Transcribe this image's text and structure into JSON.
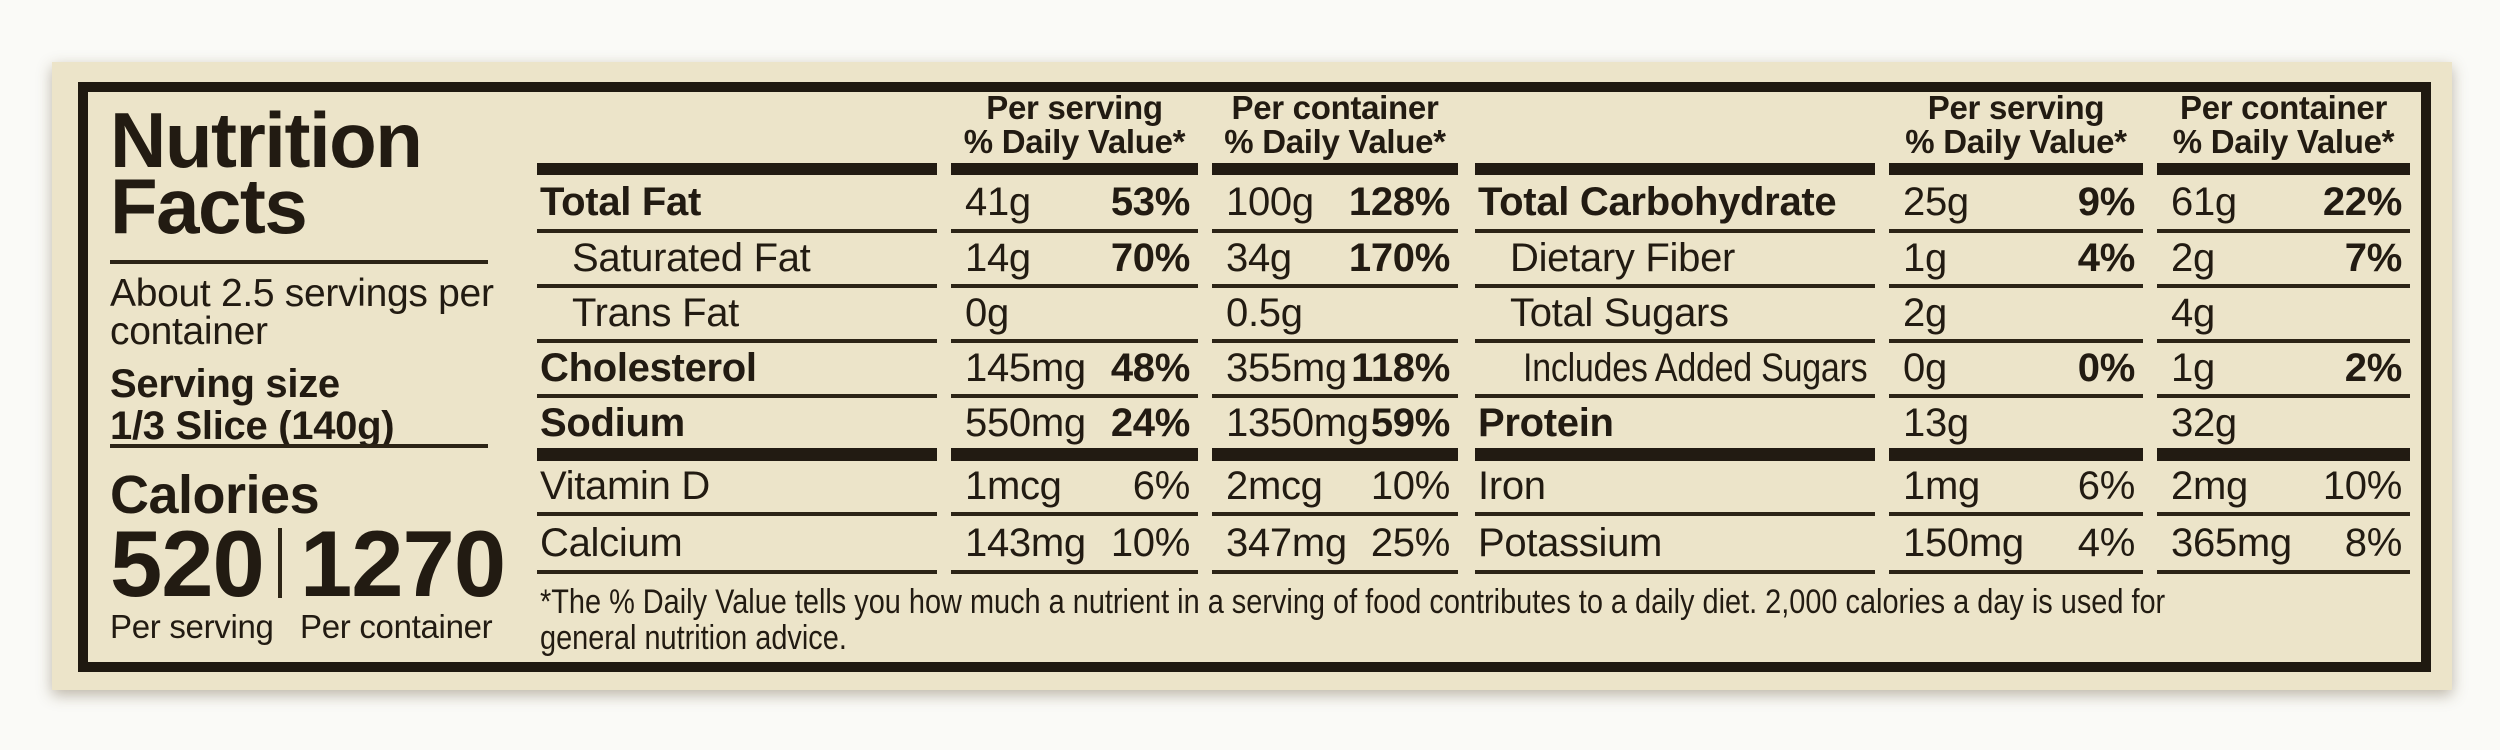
{
  "colors": {
    "label_background": "#ece4c9",
    "ink": "#221b12",
    "page_background": "#fafaf7"
  },
  "title": {
    "line1": "Nutrition",
    "line2": "Facts"
  },
  "serving": {
    "servings_per_container": "About 2.5 servings per container",
    "serving_size_label": "Serving size",
    "serving_size_value": "1/3 Slice (140g)"
  },
  "calories": {
    "label": "Calories",
    "per_serving": "520",
    "per_container": "1270",
    "caption_serving": "Per serving",
    "caption_container": "Per container"
  },
  "col_headers": {
    "serving": "Per serving",
    "container": "Per container",
    "daily_value": "% Daily Value*"
  },
  "left_table": {
    "rows": [
      {
        "n": "Total Fat",
        "ps": "41g",
        "psd": "53%",
        "pc": "100g",
        "pcd": "128%"
      },
      {
        "n": "Saturated Fat",
        "ps": "14g",
        "psd": "70%",
        "pc": "34g",
        "pcd": "170%"
      },
      {
        "n": "Trans Fat",
        "ps": "0g",
        "psd": "",
        "pc": "0.5g",
        "pcd": ""
      },
      {
        "n": "Cholesterol",
        "ps": "145mg",
        "psd": "48%",
        "pc": "355mg",
        "pcd": "118%"
      },
      {
        "n": "Sodium",
        "ps": "550mg",
        "psd": "24%",
        "pc": "1350mg",
        "pcd": "59%"
      },
      {
        "n": "Vitamin D",
        "ps": "1mcg",
        "psd": "6%",
        "pc": "2mcg",
        "pcd": "10%"
      },
      {
        "n": "Calcium",
        "ps": "143mg",
        "psd": "10%",
        "pc": "347mg",
        "pcd": "25%"
      }
    ]
  },
  "right_table": {
    "rows": [
      {
        "n": "Total Carbohydrate",
        "ps": "25g",
        "psd": "9%",
        "pc": "61g",
        "pcd": "22%"
      },
      {
        "n": "Dietary Fiber",
        "ps": "1g",
        "psd": "4%",
        "pc": "2g",
        "pcd": "7%"
      },
      {
        "n": "Total Sugars",
        "ps": "2g",
        "psd": "",
        "pc": "4g",
        "pcd": ""
      },
      {
        "n": "Includes Added Sugars",
        "ps": "0g",
        "psd": "0%",
        "pc": "1g",
        "pcd": "2%"
      },
      {
        "n": "Protein",
        "ps": "13g",
        "psd": "",
        "pc": "32g",
        "pcd": ""
      },
      {
        "n": "Iron",
        "ps": "1mg",
        "psd": "6%",
        "pc": "2mg",
        "pcd": "10%"
      },
      {
        "n": "Potassium",
        "ps": "150mg",
        "psd": "4%",
        "pc": "365mg",
        "pcd": "8%"
      }
    ]
  },
  "footnote": {
    "line1": "*The % Daily Value tells you how much a nutrient in a serving of food contributes to a daily diet. 2,000 calories a day is used for",
    "line2": "general nutrition advice."
  }
}
